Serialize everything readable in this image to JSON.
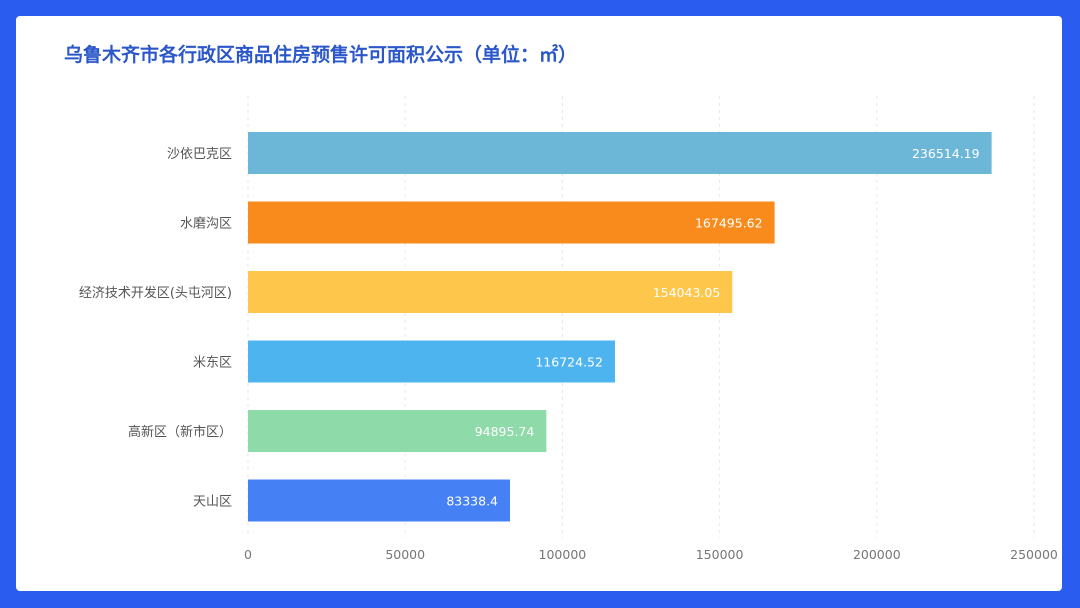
{
  "chart_data": {
    "type": "bar",
    "orientation": "horizontal",
    "title": "乌鲁木齐市各行政区商品住房预售许可面积公示（单位：㎡）",
    "categories": [
      "沙依巴克区",
      "水磨沟区",
      "经济技术开发区(头屯河区)",
      "米东区",
      "高新区（新市区）",
      "天山区"
    ],
    "values": [
      236514.19,
      167495.62,
      154043.05,
      116724.52,
      94895.74,
      83338.4
    ],
    "value_labels": [
      "236514.19",
      "167495.62",
      "154043.05",
      "116724.52",
      "94895.74",
      "83338.4"
    ],
    "colors": [
      "#6cb6d8",
      "#f98a1c",
      "#fec74b",
      "#4db4f0",
      "#8edaa8",
      "#4680f5"
    ],
    "xlim": [
      0,
      250000
    ],
    "xticks": [
      0,
      50000,
      100000,
      150000,
      200000,
      250000
    ],
    "xtick_labels": [
      "0",
      "50000",
      "100000",
      "150000",
      "200000",
      "250000"
    ],
    "grid": "vertical-dashed",
    "xlabel": "",
    "ylabel": ""
  },
  "colors": {
    "background": "#2a5cf0",
    "panel": "#ffffff",
    "title": "#2b57c9"
  }
}
